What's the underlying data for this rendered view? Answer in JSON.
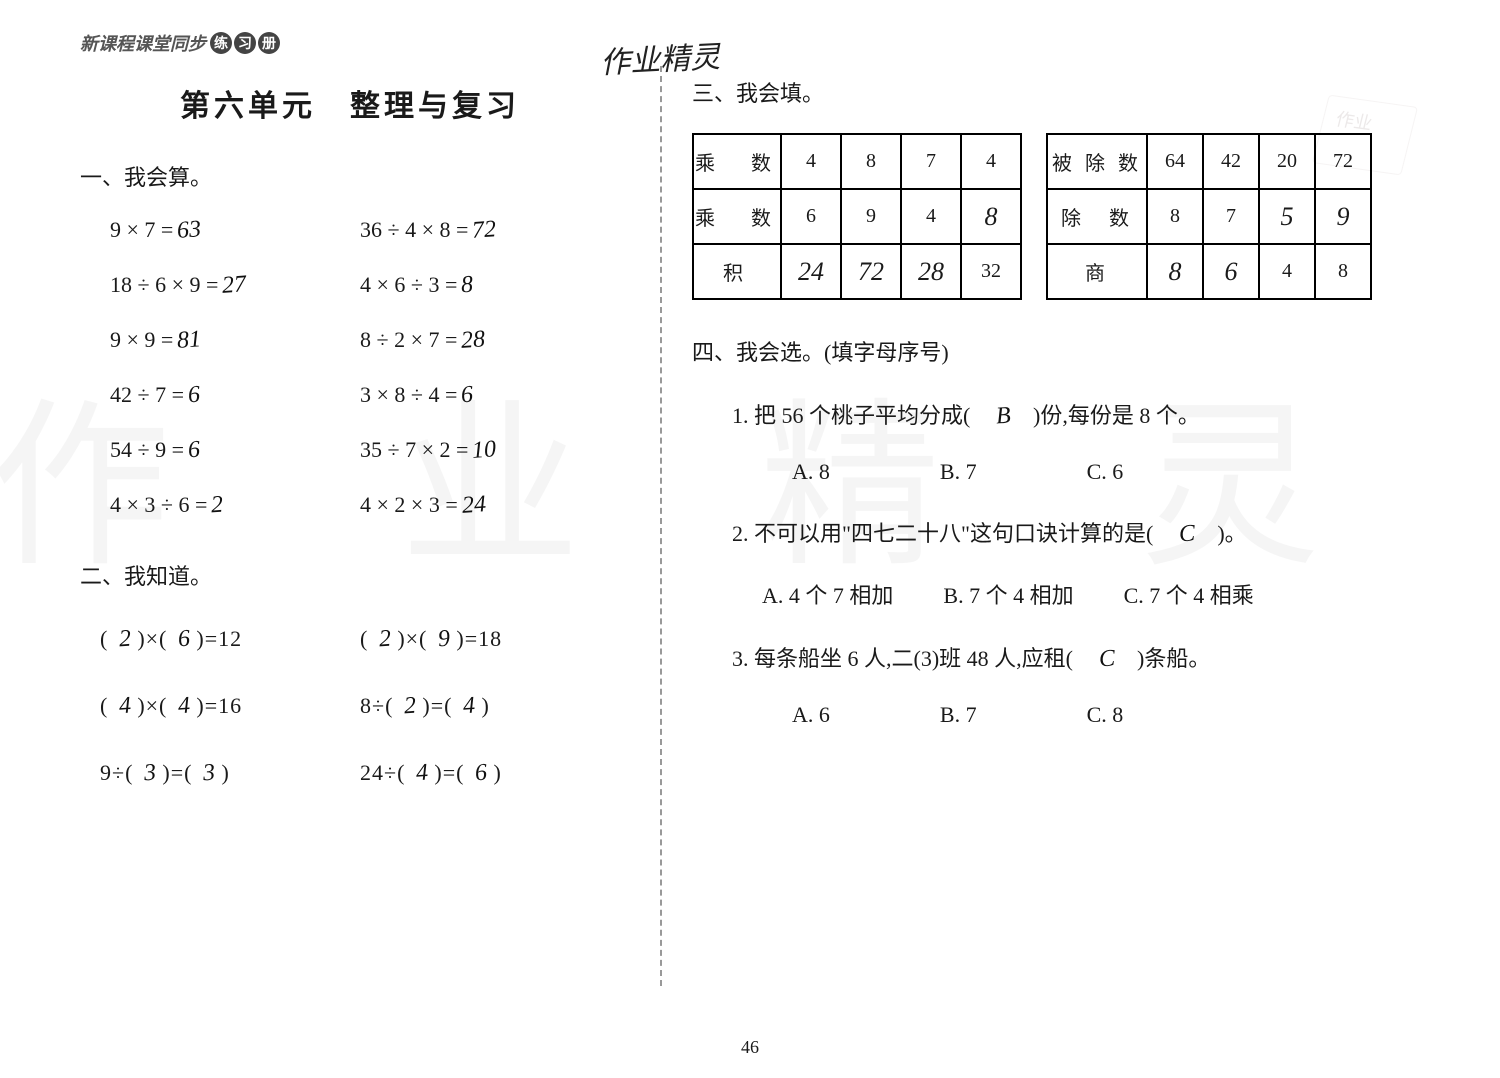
{
  "header": {
    "series_text": "新课程课堂同步",
    "badge_chars": [
      "练",
      "习",
      "册"
    ]
  },
  "handwriting_top": "作业精灵",
  "watermark_chars": [
    "作",
    "业",
    "精",
    "灵"
  ],
  "left": {
    "unit_title": "第六单元　整理与复习",
    "s1_title": "一、我会算。",
    "s1_items": [
      {
        "printed": "9 × 7 = ",
        "hand": "63"
      },
      {
        "printed": "36 ÷ 4 × 8 = ",
        "hand": "72"
      },
      {
        "printed": "18 ÷ 6 × 9 =",
        "hand": "27"
      },
      {
        "printed": "4 × 6 ÷ 3 = ",
        "hand": "8"
      },
      {
        "printed": "9 × 9 = ",
        "hand": "81"
      },
      {
        "printed": "8 ÷ 2 × 7 =",
        "hand": "28"
      },
      {
        "printed": "42 ÷ 7 = ",
        "hand": "6"
      },
      {
        "printed": "3 × 8 ÷ 4 = ",
        "hand": "6"
      },
      {
        "printed": "54 ÷ 9 = ",
        "hand": "6"
      },
      {
        "printed": "35 ÷ 7 × 2 =",
        "hand": "10"
      },
      {
        "printed": "4 × 3 ÷ 6 = ",
        "hand": "2"
      },
      {
        "printed": "4 × 2 × 3 =",
        "hand": "24"
      }
    ],
    "s2_title": "二、我知道。",
    "s2_items": [
      {
        "p0": "( ",
        "h0": "2",
        "p1": " )×( ",
        "h1": "6",
        "p2": " )=12"
      },
      {
        "p0": "( ",
        "h0": "2",
        "p1": " )×( ",
        "h1": "9",
        "p2": " )=18"
      },
      {
        "p0": "( ",
        "h0": "4",
        "p1": " )×( ",
        "h1": "4",
        "p2": " )=16"
      },
      {
        "p0": "8÷( ",
        "h0": "2",
        "p1": " )=( ",
        "h1": "4",
        "p2": " )"
      },
      {
        "p0": "9÷( ",
        "h0": "3",
        "p1": " )=( ",
        "h1": "3",
        "p2": " )"
      },
      {
        "p0": "24÷( ",
        "h0": "4",
        "p1": " )=( ",
        "h1": "6",
        "p2": " )"
      }
    ]
  },
  "right": {
    "s3_title": "三、我会填。",
    "table1": {
      "rows": [
        [
          {
            "t": "乘　数",
            "cls": "header-cell"
          },
          {
            "t": "4"
          },
          {
            "t": "8"
          },
          {
            "t": "7"
          },
          {
            "t": "4"
          }
        ],
        [
          {
            "t": "乘　数",
            "cls": "header-cell"
          },
          {
            "t": "6"
          },
          {
            "t": "9"
          },
          {
            "t": "4"
          },
          {
            "t": "8",
            "cls": "hand-cell"
          }
        ],
        [
          {
            "t": "积",
            "cls": "header-cell"
          },
          {
            "t": "24",
            "cls": "hand-cell"
          },
          {
            "t": "72",
            "cls": "hand-cell"
          },
          {
            "t": "28",
            "cls": "hand-cell"
          },
          {
            "t": "32"
          }
        ]
      ]
    },
    "table2": {
      "rows": [
        [
          {
            "t": "被 除 数",
            "cls": "header-cell"
          },
          {
            "t": "64"
          },
          {
            "t": "42"
          },
          {
            "t": "20"
          },
          {
            "t": "72"
          }
        ],
        [
          {
            "t": "除　数",
            "cls": "header-cell"
          },
          {
            "t": "8"
          },
          {
            "t": "7"
          },
          {
            "t": "5",
            "cls": "hand-cell"
          },
          {
            "t": "9",
            "cls": "hand-cell"
          }
        ],
        [
          {
            "t": "商",
            "cls": "header-cell"
          },
          {
            "t": "8",
            "cls": "hand-cell"
          },
          {
            "t": "6",
            "cls": "hand-cell"
          },
          {
            "t": "4"
          },
          {
            "t": "8"
          }
        ]
      ]
    },
    "s4_title": "四、我会选。(填字母序号)",
    "q1": {
      "pre": "1. 把 56 个桃子平均分成(　",
      "ans": "B",
      "post": "　)份,每份是 8 个。",
      "choices": [
        "A. 8",
        "B. 7",
        "C. 6"
      ]
    },
    "q2": {
      "pre": "2. 不可以用\"四七二十八\"这句口诀计算的是(　",
      "ans": "C",
      "post": "　)。",
      "choices": [
        "A. 4 个 7 相加",
        "B. 7 个 4 相加",
        "C. 7 个 4 相乘"
      ]
    },
    "q3": {
      "pre": "3. 每条船坐 6 人,二(3)班 48 人,应租(　",
      "ans": "C",
      "post": "　)条船。",
      "choices": [
        "A. 6",
        "B. 7",
        "C. 8"
      ]
    }
  },
  "page_number": "46",
  "colors": {
    "text": "#1a1a1a",
    "border": "#000000",
    "bg": "#ffffff",
    "wm": "rgba(0,0,0,0.04)"
  }
}
